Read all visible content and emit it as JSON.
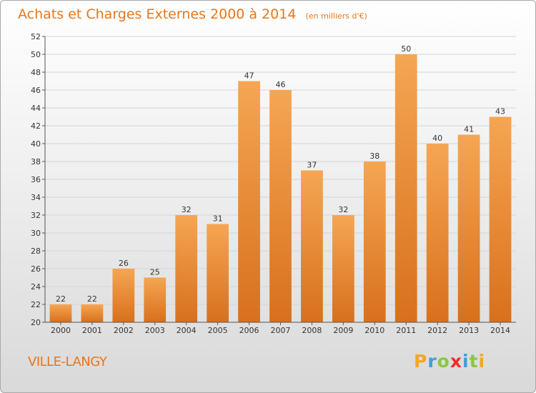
{
  "title": "Achats et Charges Externes 2000 à 2014",
  "subtitle": "(en milliers d'€)",
  "commune": "VILLE-LANGY",
  "logo_text": "Proxiti",
  "colors": {
    "accent": "#e8761c",
    "bar_top": "#f5a653",
    "bar_bottom": "#d8701c",
    "grid": "#d4d4d4"
  },
  "chart_data": {
    "type": "bar",
    "title": "Achats et Charges Externes 2000 à 2014",
    "subtitle": "(en milliers d'€)",
    "categories": [
      "2000",
      "2001",
      "2002",
      "2003",
      "2004",
      "2005",
      "2006",
      "2007",
      "2008",
      "2009",
      "2010",
      "2011",
      "2012",
      "2013",
      "2014"
    ],
    "values": [
      22,
      22,
      26,
      25,
      32,
      31,
      47,
      46,
      37,
      32,
      38,
      50,
      40,
      41,
      43
    ],
    "ylim": [
      20,
      52
    ],
    "yticks": [
      20,
      22,
      24,
      26,
      28,
      30,
      32,
      34,
      36,
      38,
      40,
      42,
      44,
      46,
      48,
      50,
      52
    ],
    "grid": true,
    "xlabel": "",
    "ylabel": ""
  }
}
